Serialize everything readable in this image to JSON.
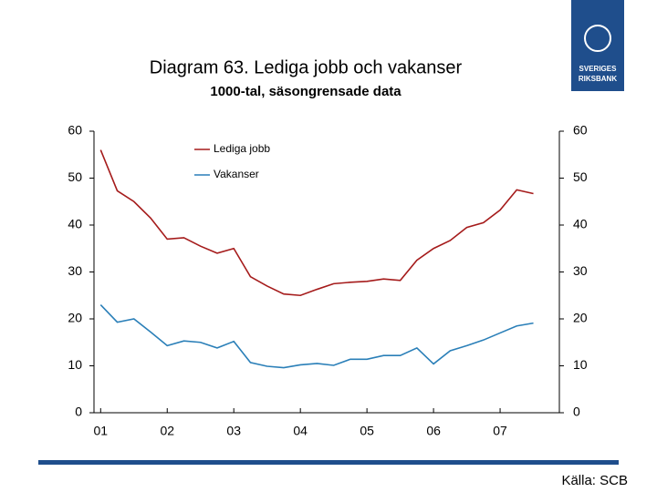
{
  "chart_data": {
    "type": "line",
    "title": "Diagram 63. Lediga jobb och vakanser",
    "subtitle": "1000-tal, säsongrensade data",
    "source": "Källa: SCB",
    "logo_text": [
      "SVERIGES",
      "RIKSBANK"
    ],
    "x": [
      2001,
      2001.25,
      2001.5,
      2001.75,
      2002,
      2002.25,
      2002.5,
      2002.75,
      2003,
      2003.25,
      2003.5,
      2003.75,
      2004,
      2004.25,
      2004.5,
      2004.75,
      2005,
      2005.25,
      2005.5,
      2005.75,
      2006,
      2006.25,
      2006.5,
      2006.75,
      2007,
      2007.25,
      2007.5
    ],
    "series": [
      {
        "name": "Lediga jobb",
        "color": "#a51b1b",
        "values": [
          56,
          47.3,
          45,
          41.5,
          37,
          37.3,
          35.5,
          34,
          35,
          29,
          27,
          25.3,
          25,
          26.3,
          27.5,
          27.8,
          28,
          28.5,
          28.2,
          32.5,
          35,
          36.7,
          39.5,
          40.5,
          43.2,
          47.5,
          46.7
        ]
      },
      {
        "name": "Vakanser",
        "color": "#2a7fb8",
        "values": [
          23,
          19.3,
          20,
          17.2,
          14.3,
          15.3,
          15,
          13.8,
          15.2,
          10.7,
          9.9,
          9.6,
          10.2,
          10.5,
          10.1,
          11.4,
          11.4,
          12.2,
          12.2,
          13.8,
          10.4,
          13.2,
          14.3,
          15.5,
          17,
          18.5,
          19.1
        ]
      }
    ],
    "xlim": [
      2000.9,
      2007.89
    ],
    "xticks": [
      {
        "value": 2001,
        "label": "01"
      },
      {
        "value": 2002,
        "label": "02"
      },
      {
        "value": 2003,
        "label": "03"
      },
      {
        "value": 2004,
        "label": "04"
      },
      {
        "value": 2005,
        "label": "05"
      },
      {
        "value": 2006,
        "label": "06"
      },
      {
        "value": 2007,
        "label": "07"
      }
    ],
    "ylim": [
      0,
      60
    ],
    "yticks": [
      0,
      10,
      20,
      30,
      40,
      50,
      60
    ],
    "y2lim": [
      0,
      60
    ],
    "y2ticks": [
      0,
      10,
      20,
      30,
      40,
      50,
      60
    ],
    "legend": "upper-left"
  }
}
